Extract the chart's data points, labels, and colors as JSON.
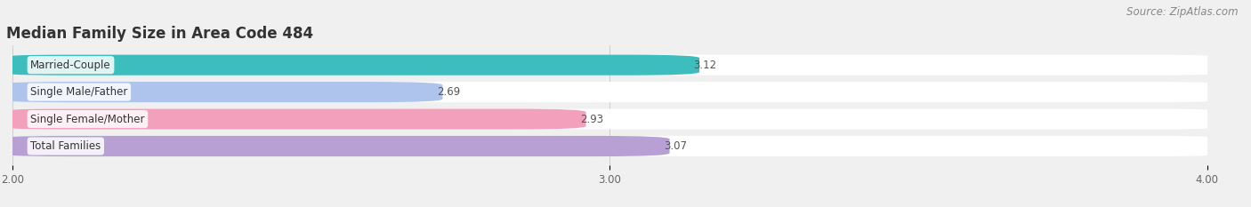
{
  "title": "Median Family Size in Area Code 484",
  "source": "Source: ZipAtlas.com",
  "categories": [
    "Married-Couple",
    "Single Male/Father",
    "Single Female/Mother",
    "Total Families"
  ],
  "values": [
    3.12,
    2.69,
    2.93,
    3.07
  ],
  "bar_colors": [
    "#3dbdbd",
    "#afc4ed",
    "#f2a0bc",
    "#b89fd4"
  ],
  "xlim": [
    2.0,
    4.0
  ],
  "xticks": [
    2.0,
    3.0,
    4.0
  ],
  "xtick_labels": [
    "2.00",
    "3.00",
    "4.00"
  ],
  "background_color": "#f0f0f0",
  "row_bg_color": "#e8e8e8",
  "title_fontsize": 12,
  "label_fontsize": 8.5,
  "value_fontsize": 8.5,
  "source_fontsize": 8.5
}
